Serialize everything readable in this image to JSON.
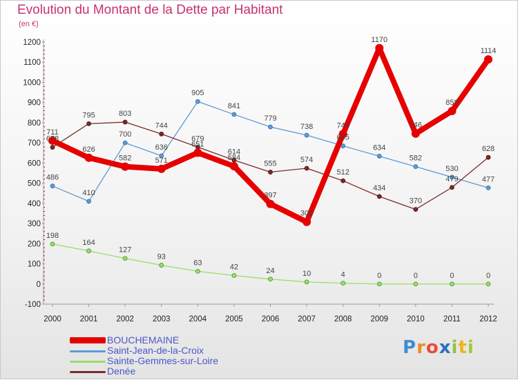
{
  "header": {
    "title": "Evolution du Montant de la Dette par Habitant",
    "subtitle": "(en €)"
  },
  "brand": {
    "text": "Proxiti"
  },
  "colors": {
    "BOUCHEMAINE": "#e60000",
    "Saint-Jean-de-la-Croix": "#5b9bd5",
    "Sainte-Gemmes-sur-Loire": "#99dd66",
    "Denée": "#7a2a2a",
    "title": "#c8326e",
    "legend_text": "#4a57c9"
  },
  "chart_data": {
    "type": "line",
    "title": "Evolution du Montant de la Dette par Habitant",
    "subtitle": "(en €)",
    "x": [
      "2000",
      "2001",
      "2002",
      "2003",
      "2004",
      "2005",
      "2006",
      "2007",
      "2008",
      "2009",
      "2010",
      "2011",
      "2012"
    ],
    "yticks": [
      -100,
      0,
      100,
      200,
      300,
      400,
      500,
      600,
      700,
      800,
      900,
      1000,
      1100,
      1200
    ],
    "ylim": [
      -100,
      1200
    ],
    "grid": false,
    "legend_position": "bottom-left",
    "series": [
      {
        "name": "BOUCHEMAINE",
        "values": [
          711,
          626,
          582,
          571,
          651,
          584,
          397,
          308,
          744,
          1170,
          746,
          858,
          1114
        ]
      },
      {
        "name": "Saint-Jean-de-la-Croix",
        "values": [
          486,
          410,
          700,
          636,
          905,
          841,
          779,
          738,
          685,
          634,
          582,
          530,
          477
        ]
      },
      {
        "name": "Sainte-Gemmes-sur-Loire",
        "values": [
          198,
          164,
          127,
          93,
          63,
          42,
          24,
          10,
          4,
          0,
          0,
          0,
          0
        ]
      },
      {
        "name": "Denée",
        "values": [
          678,
          795,
          803,
          744,
          679,
          614,
          555,
          574,
          512,
          434,
          370,
          479,
          628
        ]
      }
    ]
  }
}
